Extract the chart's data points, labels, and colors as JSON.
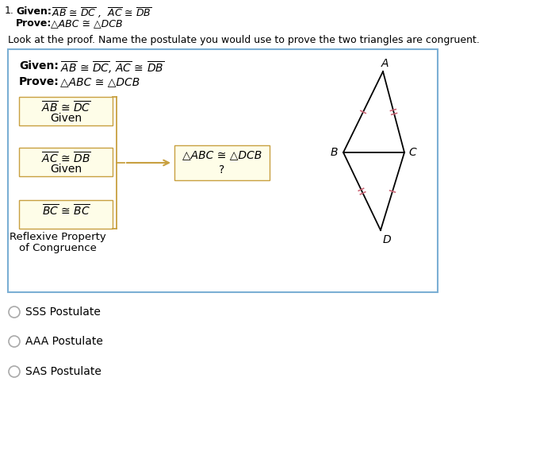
{
  "bg_color": "#ffffff",
  "text_color": "#000000",
  "box_border_color": "#7bafd4",
  "small_box_fill": "#fefde8",
  "small_box_border": "#c8a040",
  "arrow_color": "#333333",
  "radio_options": [
    "SSS Postulate",
    "AAA Postulate",
    "SAS Postulate"
  ],
  "fig_width": 6.76,
  "fig_height": 5.68,
  "dpi": 100
}
